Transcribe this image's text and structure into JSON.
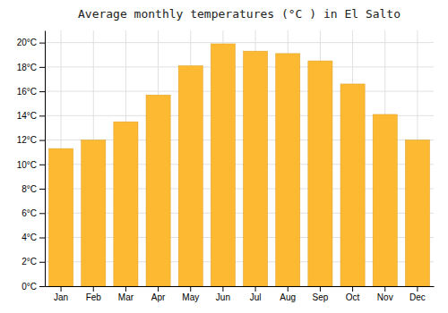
{
  "chart_data": {
    "type": "bar",
    "title": "Average monthly temperatures (°C ) in El Salto",
    "categories": [
      "Jan",
      "Feb",
      "Mar",
      "Apr",
      "May",
      "Jun",
      "Jul",
      "Aug",
      "Sep",
      "Oct",
      "Nov",
      "Dec"
    ],
    "values": [
      11.3,
      12.0,
      13.5,
      15.7,
      18.1,
      19.9,
      19.3,
      19.1,
      18.5,
      16.6,
      14.1,
      12.0
    ],
    "color": "#FDB931",
    "ylim": [
      0,
      21
    ],
    "yticks": [
      {
        "value": 0,
        "label": "0°C"
      },
      {
        "value": 2,
        "label": "2°C"
      },
      {
        "value": 4,
        "label": "4°C"
      },
      {
        "value": 6,
        "label": "6°C"
      },
      {
        "value": 8,
        "label": "8°C"
      },
      {
        "value": 10,
        "label": "10°C"
      },
      {
        "value": 12,
        "label": "12°C"
      },
      {
        "value": 14,
        "label": "14°C"
      },
      {
        "value": 16,
        "label": "16°C"
      },
      {
        "value": 18,
        "label": "18°C"
      },
      {
        "value": 20,
        "label": "20°C"
      }
    ],
    "grid": true
  }
}
